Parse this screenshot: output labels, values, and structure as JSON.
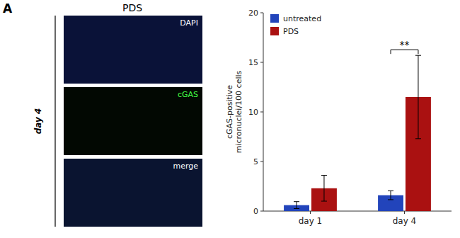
{
  "chart_data": [
    {
      "type": "bar",
      "categories": [
        "day 1",
        "day 4"
      ],
      "series": [
        {
          "name": "untreated",
          "color": "#2244bb",
          "values": [
            0.6,
            1.6
          ],
          "errors": [
            0.35,
            0.45
          ]
        },
        {
          "name": "PDS",
          "color": "#aa1111",
          "values": [
            2.3,
            11.5
          ],
          "errors": [
            1.3,
            4.2
          ]
        }
      ],
      "y_label": "cGAS-positive\nmicronuclei/100 cells",
      "ylim": [
        0,
        20
      ],
      "yticks": [
        0,
        5,
        10,
        15,
        20
      ],
      "legend": "upper left",
      "annotations": [
        {
          "text": "**",
          "category": "day 4"
        }
      ]
    },
    {
      "type": "image",
      "title": "PDS",
      "annotations": [
        "A",
        "day 4",
        "DAPI",
        "cGAS",
        "merge"
      ]
    }
  ]
}
